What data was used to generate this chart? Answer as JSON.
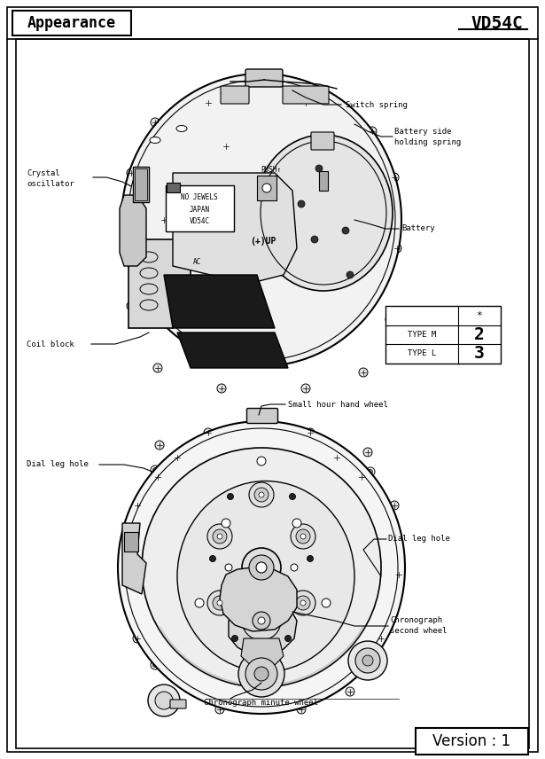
{
  "title_left": "Appearance",
  "title_right": "VD54C",
  "version_text": "Version : 1",
  "bg_color": "#ffffff",
  "labels_d1": {
    "switch_spring": "Switch spring",
    "battery_side1": "Battery side",
    "battery_side2": "holding spring",
    "crystal1": "Crystal",
    "crystal2": "oscillator",
    "battery": "Battery",
    "coil_block": "Coil block",
    "no_jewels": "NO JEWELS\nJAPAN\nVD54C",
    "push": "PUSH↑",
    "plus_up": "(+)UP",
    "ac": "AC"
  },
  "labels_d2": {
    "small_hour": "Small hour hand wheel",
    "dial_left": "Dial leg hole",
    "dial_right": "Dial leg hole",
    "chrono_second1": "Chronograph",
    "chrono_second2": "second wheel",
    "chrono_minute": "Chronograph minute wheel"
  },
  "table": {
    "col_star": "*",
    "row1_name": "TYPE M",
    "row1_val": "2",
    "row2_name": "TYPE L",
    "row2_val": "3"
  }
}
